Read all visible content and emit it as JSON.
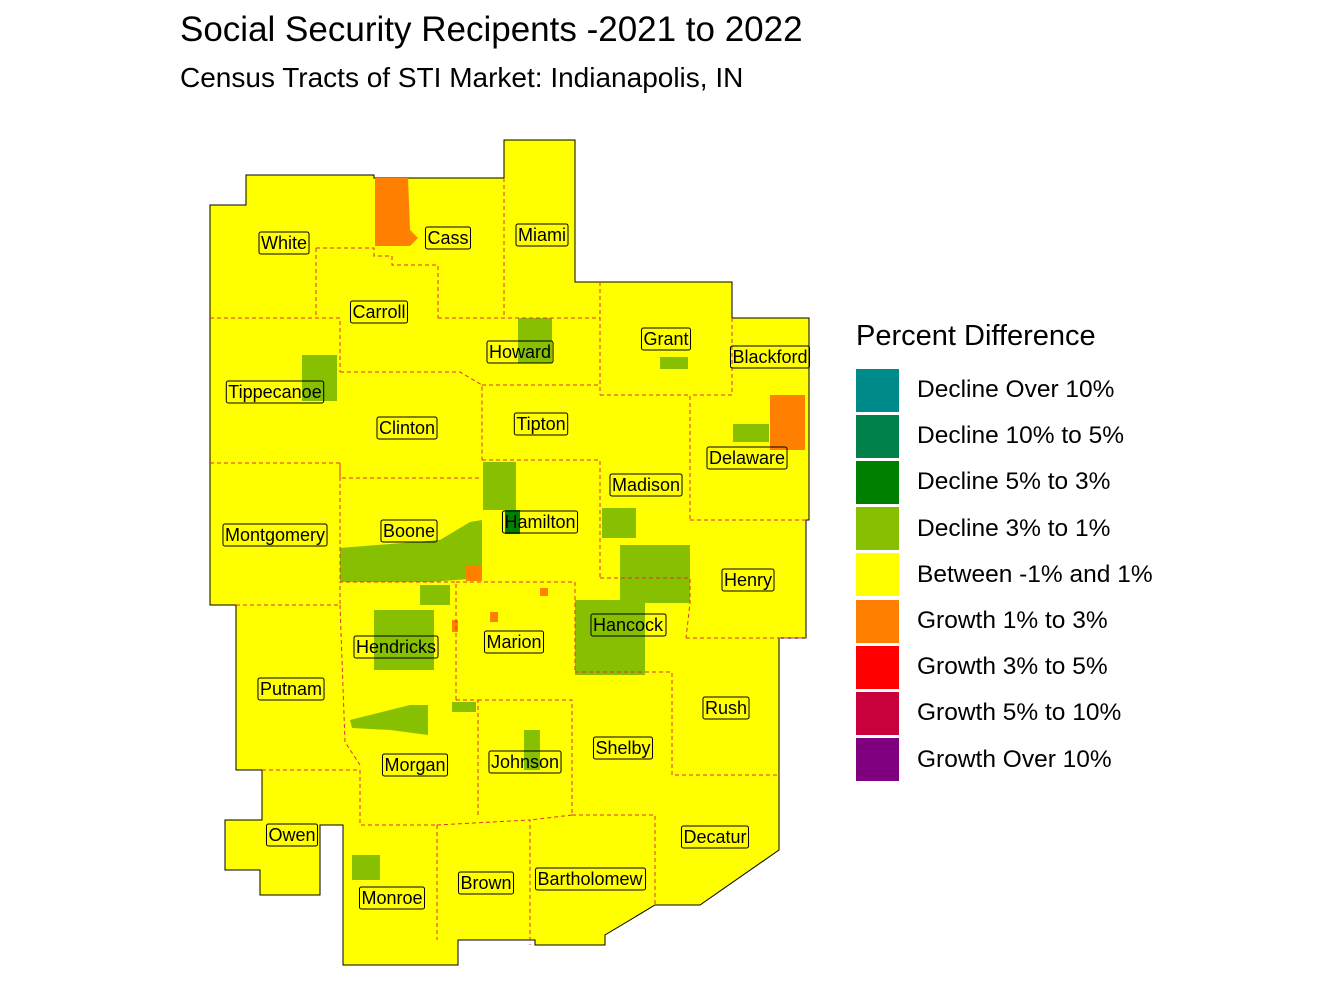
{
  "title": "Social Security Recipents -2021 to 2022",
  "subtitle": "Census Tracts of STI Market: Indianapolis, IN",
  "legend": {
    "title": "Percent Difference",
    "items": [
      {
        "label": "Decline Over 10%",
        "color": "#008B8B"
      },
      {
        "label": "Decline 10% to 5%",
        "color": "#00804A"
      },
      {
        "label": "Decline 5% to 3%",
        "color": "#008000"
      },
      {
        "label": "Decline 3% to 1%",
        "color": "#86C000"
      },
      {
        "label": "Between -1% and 1%",
        "color": "#FFFF00"
      },
      {
        "label": "Growth 1% to 3%",
        "color": "#FF8000"
      },
      {
        "label": "Growth 3% to 5%",
        "color": "#FF0000"
      },
      {
        "label": "Growth 5% to 10%",
        "color": "#C8003C"
      },
      {
        "label": "Growth Over 10%",
        "color": "#800080"
      }
    ]
  },
  "colors": {
    "base": "#FFFF00",
    "border": "#E0303C",
    "outline": "#000000"
  },
  "counties": [
    {
      "name": "White"
    },
    {
      "name": "Cass"
    },
    {
      "name": "Miami"
    },
    {
      "name": "Carroll"
    },
    {
      "name": "Howard"
    },
    {
      "name": "Grant"
    },
    {
      "name": "Blackford"
    },
    {
      "name": "Tippecanoe"
    },
    {
      "name": "Clinton"
    },
    {
      "name": "Tipton"
    },
    {
      "name": "Delaware"
    },
    {
      "name": "Madison"
    },
    {
      "name": "Montgomery"
    },
    {
      "name": "Boone"
    },
    {
      "name": "Hamilton"
    },
    {
      "name": "Henry"
    },
    {
      "name": "Hancock"
    },
    {
      "name": "Hendricks"
    },
    {
      "name": "Marion"
    },
    {
      "name": "Putnam"
    },
    {
      "name": "Rush"
    },
    {
      "name": "Shelby"
    },
    {
      "name": "Johnson"
    },
    {
      "name": "Morgan"
    },
    {
      "name": "Owen"
    },
    {
      "name": "Decatur"
    },
    {
      "name": "Bartholomew"
    },
    {
      "name": "Brown"
    },
    {
      "name": "Monroe"
    }
  ]
}
